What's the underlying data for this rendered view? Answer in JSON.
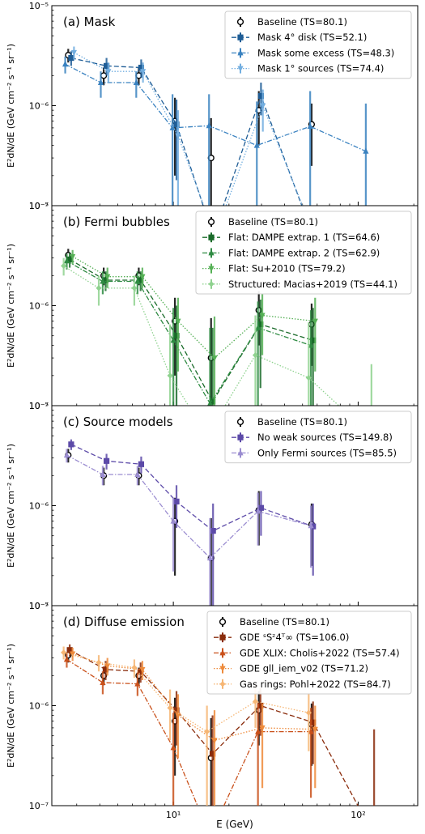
{
  "figure": {
    "xlabel": "E (GeV)",
    "ylabel": "E²dN/dE (GeV cm⁻² s⁻¹ sr⁻¹)",
    "xlim": [
      2.2,
      210
    ],
    "ylim": [
      1e-07,
      1e-05
    ],
    "xscale": "log",
    "yscale": "log",
    "xticks": [
      {
        "v": 10,
        "label": "10¹"
      },
      {
        "v": 100,
        "label": "10²"
      }
    ],
    "yticks": [
      {
        "v": 1e-07,
        "label": "10⁻⁷"
      },
      {
        "v": 1e-06,
        "label": "10⁻⁶"
      },
      {
        "v": 1e-05,
        "label": "10⁻⁵"
      }
    ]
  },
  "chart_data": [
    {
      "type": "scatter",
      "title": "(a) Mask",
      "legend_position": "top-right",
      "series": [
        {
          "name": "Baseline (TS=80.1)",
          "color": "#000000",
          "style": "none",
          "marker": "o",
          "x": [
            2.7,
            4.2,
            6.5,
            10.2,
            16.0,
            29.0,
            56.0
          ],
          "y": [
            3.2e-06,
            2e-06,
            2e-06,
            7e-07,
            3e-07,
            9e-07,
            6.5e-07
          ],
          "ylo": [
            2.7e-06,
            1.6e-06,
            1.6e-06,
            2e-07,
            5e-08,
            4e-07,
            2.5e-07
          ],
          "yhi": [
            3.7e-06,
            2.4e-06,
            2.4e-06,
            1.2e-06,
            7.5e-07,
            1.4e-06,
            1.05e-06
          ]
        },
        {
          "name": "Mask 4° disk (TS=52.1)",
          "color": "#1f5d96",
          "style": "dashed",
          "marker": "s",
          "x": [
            2.8,
            4.35,
            6.7,
            10.4,
            16.4,
            29.8,
            57.0
          ],
          "y": [
            3e-06,
            2.5e-06,
            2.4e-06,
            6.5e-07,
            5e-08,
            1.25e-06,
            5e-08
          ],
          "ylo": [
            2.5e-06,
            2e-06,
            1.9e-06,
            1.8e-07,
            5e-08,
            8e-07,
            5e-08
          ],
          "yhi": [
            3.5e-06,
            3e-06,
            2.9e-06,
            1.15e-06,
            5e-08,
            1.7e-06,
            5e-08
          ]
        },
        {
          "name": "Mask some excess (TS=48.3)",
          "color": "#3a82c0",
          "style": "dashdot",
          "marker": "^",
          "x": [
            2.6,
            4.05,
            6.3,
            9.9,
            15.6,
            28.3,
            55.0,
            110.0
          ],
          "y": [
            2.6e-06,
            1.7e-06,
            1.7e-06,
            6e-07,
            6.3e-07,
            4e-07,
            6.2e-07,
            3.5e-07
          ],
          "ylo": [
            2.1e-06,
            1.2e-06,
            1.2e-06,
            5e-08,
            5e-08,
            5e-08,
            5e-08,
            5e-08
          ],
          "yhi": [
            3.1e-06,
            2.2e-06,
            2.2e-06,
            1.3e-06,
            1.3e-06,
            1.1e-06,
            1.4e-06,
            1.05e-06
          ]
        },
        {
          "name": "Mask 1° sources (TS=74.4)",
          "color": "#72aee0",
          "style": "dotted",
          "marker": "v",
          "x": [
            2.9,
            4.45,
            6.85,
            10.6,
            16.8,
            30.5,
            58.0
          ],
          "y": [
            3.4e-06,
            2.2e-06,
            2.2e-06,
            5e-07,
            5e-08,
            1e-06,
            5e-08
          ],
          "ylo": [
            2.9e-06,
            1.7e-06,
            1.7e-06,
            1e-07,
            5e-08,
            5.5e-07,
            5e-08
          ],
          "yhi": [
            3.9e-06,
            2.7e-06,
            2.7e-06,
            9e-07,
            5e-08,
            1.45e-06,
            5e-08
          ]
        }
      ]
    },
    {
      "type": "scatter",
      "title": "(b) Fermi bubbles",
      "legend_position": "top-right",
      "series": [
        {
          "name": "Baseline (TS=80.1)",
          "color": "#000000",
          "style": "none",
          "marker": "o",
          "x": [
            2.7,
            4.2,
            6.5,
            10.2,
            16.0,
            29.0,
            56.0
          ],
          "y": [
            3.2e-06,
            2e-06,
            2e-06,
            7e-07,
            3e-07,
            9e-07,
            6.5e-07
          ],
          "ylo": [
            2.7e-06,
            1.6e-06,
            1.6e-06,
            2e-07,
            5e-08,
            4e-07,
            2.5e-07
          ],
          "yhi": [
            3.7e-06,
            2.4e-06,
            2.4e-06,
            1.2e-06,
            7.5e-07,
            1.4e-06,
            1.05e-06
          ]
        },
        {
          "name": "Flat: DAMPE extrap. 1 (TS=64.6)",
          "color": "#1a6b2a",
          "style": "dashed",
          "marker": "s",
          "x": [
            2.75,
            4.3,
            6.65,
            10.4,
            16.3,
            29.6,
            57.0
          ],
          "y": [
            2.9e-06,
            1.8e-06,
            1.8e-06,
            5e-07,
            1.1e-07,
            6.5e-07,
            4.5e-07
          ],
          "ylo": [
            2.4e-06,
            1.4e-06,
            1.4e-06,
            5e-08,
            5e-08,
            1.5e-07,
            5e-08
          ],
          "yhi": [
            3.4e-06,
            2.2e-06,
            2.2e-06,
            1e-06,
            6e-07,
            1.15e-06,
            9.5e-07
          ]
        },
        {
          "name": "Flat: DAMPE extrap. 2 (TS=62.9)",
          "color": "#2e8b42",
          "style": "dashdot",
          "marker": "^",
          "x": [
            2.65,
            4.15,
            6.4,
            10.0,
            15.8,
            28.7,
            55.5
          ],
          "y": [
            2.8e-06,
            1.75e-06,
            1.75e-06,
            4.5e-07,
            1.05e-07,
            6e-07,
            4e-07
          ],
          "ylo": [
            2.3e-06,
            1.3e-06,
            1.3e-06,
            5e-08,
            5e-08,
            1e-07,
            5e-08
          ],
          "yhi": [
            3.3e-06,
            2.2e-06,
            2.2e-06,
            9.5e-07,
            6e-07,
            1.1e-06,
            9e-07
          ]
        },
        {
          "name": "Flat: Su+2010 (TS=79.2)",
          "color": "#55b055",
          "style": "dotted",
          "marker": "v",
          "x": [
            2.85,
            4.4,
            6.8,
            10.6,
            16.7,
            30.3,
            58.5
          ],
          "y": [
            3.1e-06,
            1.95e-06,
            1.95e-06,
            7e-07,
            3e-07,
            8e-07,
            7e-07
          ],
          "ylo": [
            2.6e-06,
            1.5e-06,
            1.5e-06,
            2.2e-07,
            5e-08,
            3.2e-07,
            2.2e-07
          ],
          "yhi": [
            3.6e-06,
            2.4e-06,
            2.4e-06,
            1.2e-06,
            7.8e-07,
            1.3e-06,
            1.2e-06
          ]
        },
        {
          "name": "Structured: Macias+2019 (TS=44.1)",
          "color": "#8fd28f",
          "style": "dotted",
          "marker": "D",
          "x": [
            2.55,
            3.95,
            6.15,
            9.6,
            15.2,
            27.8,
            54.0,
            118.0
          ],
          "y": [
            2.5e-06,
            1.5e-06,
            1.5e-06,
            2e-07,
            5e-08,
            3.2e-07,
            1.9e-07,
            5e-08
          ],
          "ylo": [
            2e-06,
            1e-06,
            1e-06,
            5e-08,
            5e-08,
            5e-08,
            5e-08,
            5e-08
          ],
          "yhi": [
            3e-06,
            2e-06,
            2e-06,
            6.5e-07,
            5e-08,
            8e-07,
            6.8e-07,
            2.6e-07
          ]
        }
      ]
    },
    {
      "type": "scatter",
      "title": "(c) Source models",
      "legend_position": "top-right",
      "series": [
        {
          "name": "Baseline (TS=80.1)",
          "color": "#000000",
          "style": "none",
          "marker": "o",
          "x": [
            2.7,
            4.2,
            6.5,
            10.2,
            16.0,
            29.0,
            56.0
          ],
          "y": [
            3.2e-06,
            2e-06,
            2e-06,
            7e-07,
            3e-07,
            9e-07,
            6.5e-07
          ],
          "ylo": [
            2.7e-06,
            1.6e-06,
            1.6e-06,
            2e-07,
            5e-08,
            4e-07,
            2.5e-07
          ],
          "yhi": [
            3.7e-06,
            2.4e-06,
            2.4e-06,
            1.2e-06,
            7.5e-07,
            1.4e-06,
            1.05e-06
          ]
        },
        {
          "name": "No weak sources (TS=149.8)",
          "color": "#5c4aa8",
          "style": "dashed",
          "marker": "s",
          "x": [
            2.8,
            4.35,
            6.7,
            10.4,
            16.4,
            29.8,
            57.0
          ],
          "y": [
            4.1e-06,
            2.8e-06,
            2.6e-06,
            1.1e-06,
            5.6e-07,
            9.5e-07,
            6.2e-07
          ],
          "ylo": [
            3.6e-06,
            2.3e-06,
            2.1e-06,
            6e-07,
            1e-07,
            5e-07,
            2e-07
          ],
          "yhi": [
            4.6e-06,
            3.3e-06,
            3.1e-06,
            1.6e-06,
            1.05e-06,
            1.4e-06,
            1.05e-06
          ]
        },
        {
          "name": "Only Fermi sources (TS=85.5)",
          "color": "#9a8cd0",
          "style": "dashdot",
          "marker": "^",
          "x": [
            2.65,
            4.15,
            6.4,
            10.0,
            15.8,
            28.7,
            55.5
          ],
          "y": [
            3.2e-06,
            2.05e-06,
            2.05e-06,
            7e-07,
            3e-07,
            8.8e-07,
            6.3e-07
          ],
          "ylo": [
            2.7e-06,
            1.6e-06,
            1.6e-06,
            2.2e-07,
            5e-08,
            4e-07,
            2.4e-07
          ],
          "yhi": [
            3.7e-06,
            2.5e-06,
            2.5e-06,
            1.2e-06,
            7.5e-07,
            1.35e-06,
            1e-06
          ]
        }
      ]
    },
    {
      "type": "scatter",
      "title": "(d) Diffuse emission",
      "legend_position": "top-right",
      "series": [
        {
          "name": "Baseline (TS=80.1)",
          "color": "#000000",
          "style": "none",
          "marker": "o",
          "x": [
            2.7,
            4.2,
            6.5,
            10.2,
            16.0,
            29.0,
            56.0
          ],
          "y": [
            3.2e-06,
            2e-06,
            2e-06,
            7e-07,
            3e-07,
            9e-07,
            6.5e-07
          ],
          "ylo": [
            2.7e-06,
            1.6e-06,
            1.6e-06,
            2e-07,
            5e-08,
            4e-07,
            2.5e-07
          ],
          "yhi": [
            3.7e-06,
            2.4e-06,
            2.4e-06,
            1.2e-06,
            7.5e-07,
            1.4e-06,
            1.05e-06
          ]
        },
        {
          "name": "GDE ˢSᶻ4ᵀ∞ (TS=106.0)",
          "color": "#8a2c0c",
          "style": "dashed",
          "marker": "s",
          "x": [
            2.75,
            4.3,
            6.65,
            10.4,
            16.3,
            29.6,
            57.0,
            122.0
          ],
          "y": [
            3.6e-06,
            2.3e-06,
            2.2e-06,
            9e-07,
            3.3e-07,
            1e-06,
            6.8e-07,
            5e-08
          ],
          "ylo": [
            3.1e-06,
            1.8e-06,
            1.7e-06,
            4e-07,
            5e-08,
            5e-07,
            2.6e-07,
            5e-08
          ],
          "yhi": [
            4.1e-06,
            2.8e-06,
            2.7e-06,
            1.4e-06,
            8e-07,
            1.5e-06,
            1.1e-06,
            5.8e-07
          ]
        },
        {
          "name": "GDE XLIX: Cholis+2022 (TS=57.4)",
          "color": "#c9501a",
          "style": "dashdot",
          "marker": "^",
          "x": [
            2.65,
            4.15,
            6.4,
            10.0,
            15.8,
            28.7,
            55.5
          ],
          "y": [
            2.9e-06,
            1.7e-06,
            1.65e-06,
            3.8e-07,
            5e-08,
            5.5e-07,
            5.5e-07
          ],
          "ylo": [
            2.4e-06,
            1.3e-06,
            1.25e-06,
            5e-08,
            5e-08,
            1e-07,
            1.2e-07
          ],
          "yhi": [
            3.4e-06,
            2.2e-06,
            2.15e-06,
            8.5e-07,
            5e-08,
            1.05e-06,
            9.5e-07
          ]
        },
        {
          "name": "GDE gll_iem_v02 (TS=71.2)",
          "color": "#ee8a3a",
          "style": "dotted",
          "marker": "v",
          "x": [
            2.85,
            4.4,
            6.8,
            10.6,
            16.7,
            30.3,
            58.5
          ],
          "y": [
            3.3e-06,
            2.5e-06,
            2.3e-06,
            8e-07,
            4.5e-07,
            6e-07,
            5.8e-07
          ],
          "ylo": [
            2.8e-06,
            2e-06,
            1.8e-06,
            3e-07,
            5e-08,
            1.5e-07,
            1.5e-07
          ],
          "yhi": [
            3.8e-06,
            3e-06,
            2.8e-06,
            1.3e-06,
            9e-07,
            1.05e-06,
            1e-06
          ]
        },
        {
          "name": "Gas rings: Pohl+2022 (TS=84.7)",
          "color": "#f6b674",
          "style": "dotted",
          "marker": "D",
          "x": [
            2.55,
            3.95,
            6.15,
            9.6,
            15.2,
            27.8,
            54.0
          ],
          "y": [
            3.4e-06,
            2.7e-06,
            2.4e-06,
            9.5e-07,
            5.5e-07,
            1.1e-06,
            8.5e-07
          ],
          "ylo": [
            2.9e-06,
            2.2e-06,
            1.9e-06,
            4.5e-07,
            1e-07,
            6e-07,
            3.5e-07
          ],
          "yhi": [
            3.9e-06,
            3.2e-06,
            2.9e-06,
            1.45e-06,
            1e-06,
            1.6e-06,
            1.35e-06
          ]
        }
      ]
    }
  ]
}
